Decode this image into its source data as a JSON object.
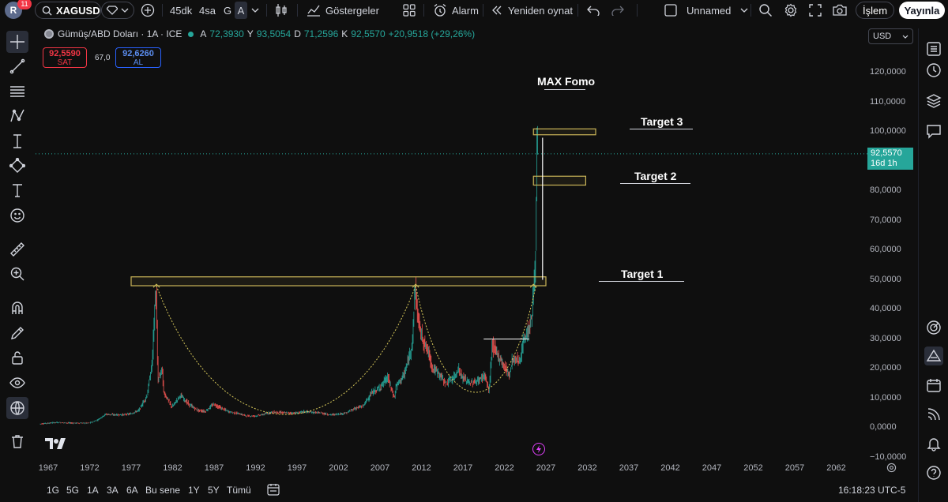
{
  "toolbar": {
    "avatar_letter": "R",
    "notification_count": "11",
    "symbol": "XAGUSD",
    "intervals": [
      "45dk",
      "4sa",
      "G",
      "A"
    ],
    "indicators_label": "Göstergeler",
    "alarm_label": "Alarm",
    "replay_label": "Yeniden oynat",
    "layout_name": "Unnamed",
    "trade_label": "İşlem",
    "publish_label": "Yayınla"
  },
  "legend": {
    "title": "Gümüş/ABD Doları · 1A · ICE",
    "open_label": "A",
    "open_value": "72,3930",
    "high_label": "Y",
    "high_value": "93,5054",
    "low_label": "D",
    "low_value": "71,2596",
    "close_label": "K",
    "close_value": "92,5570",
    "change": "+20,9518 (+29,26%)"
  },
  "trade": {
    "sell_price": "92,5590",
    "sell_label": "SAT",
    "spread": "67,0",
    "buy_price": "92,6260",
    "buy_label": "AL"
  },
  "currency": "USD",
  "annotations": {
    "max_fomo": "MAX Fomo",
    "target1": "Target 1",
    "target2": "Target 2",
    "target3": "Target 3"
  },
  "last_price": {
    "value": "92,5570",
    "countdown": "16d 1h"
  },
  "price_axis": [
    "120,0000",
    "110,0000",
    "100,0000",
    "90,0000",
    "80,0000",
    "70,0000",
    "60,0000",
    "50,0000",
    "40,0000",
    "30,0000",
    "20,0000",
    "10,0000",
    "0,0000",
    "−10,0000"
  ],
  "time_axis": [
    "1967",
    "1972",
    "1977",
    "1982",
    "1987",
    "1992",
    "1997",
    "2002",
    "2007",
    "2012",
    "2017",
    "2022",
    "2027",
    "2032",
    "2037",
    "2042",
    "2047",
    "2052",
    "2057",
    "2062"
  ],
  "bottom": {
    "ranges": [
      "1G",
      "5G",
      "1A",
      "3A",
      "6A",
      "Bu sene",
      "1Y",
      "5Y",
      "Tümü"
    ],
    "clock": "16:18:23 UTC-5"
  },
  "colors": {
    "up": "#26a69a",
    "down": "#ef5350",
    "accent": "#2962ff",
    "annotation_box": "#c9b458"
  },
  "chart_data": {
    "type": "candlestick",
    "symbol": "XAGUSD",
    "interval": "1M",
    "ylim": [
      -10,
      130
    ],
    "xlim": [
      1966,
      2066
    ],
    "series": [
      {
        "name": "XAGUSD",
        "points": [
          [
            1966,
            1.3
          ],
          [
            1968,
            1.8
          ],
          [
            1970,
            1.6
          ],
          [
            1972,
            1.6
          ],
          [
            1973,
            2.6
          ],
          [
            1974,
            4.6
          ],
          [
            1975,
            4.4
          ],
          [
            1976,
            4.4
          ],
          [
            1977,
            4.7
          ],
          [
            1978,
            5.9
          ],
          [
            1979,
            11
          ],
          [
            1979.6,
            22
          ],
          [
            1980.05,
            48
          ],
          [
            1980.3,
            16
          ],
          [
            1980.8,
            20
          ],
          [
            1981,
            12
          ],
          [
            1982,
            7
          ],
          [
            1983,
            11
          ],
          [
            1984,
            8
          ],
          [
            1985,
            6
          ],
          [
            1986,
            5.5
          ],
          [
            1987,
            8
          ],
          [
            1988,
            6.5
          ],
          [
            1989,
            5.3
          ],
          [
            1990,
            4.8
          ],
          [
            1991,
            4
          ],
          [
            1992,
            4
          ],
          [
            1993,
            4.5
          ],
          [
            1994,
            5.3
          ],
          [
            1995,
            5.2
          ],
          [
            1996,
            5
          ],
          [
            1997,
            5
          ],
          [
            1998,
            5.5
          ],
          [
            1999,
            5.2
          ],
          [
            2000,
            5
          ],
          [
            2001,
            4.4
          ],
          [
            2002,
            4.6
          ],
          [
            2003,
            5
          ],
          [
            2004,
            6.5
          ],
          [
            2005,
            7.3
          ],
          [
            2006,
            11.5
          ],
          [
            2007,
            13.5
          ],
          [
            2008,
            17
          ],
          [
            2008.8,
            10
          ],
          [
            2009,
            14
          ],
          [
            2010,
            18
          ],
          [
            2010.6,
            24
          ],
          [
            2011,
            30
          ],
          [
            2011.3,
            48
          ],
          [
            2011.6,
            38
          ],
          [
            2012,
            32
          ],
          [
            2012.5,
            28
          ],
          [
            2013,
            25
          ],
          [
            2013.4,
            20
          ],
          [
            2014,
            19
          ],
          [
            2015,
            15
          ],
          [
            2016,
            17
          ],
          [
            2016.5,
            20
          ],
          [
            2017,
            17
          ],
          [
            2018,
            15
          ],
          [
            2019,
            16
          ],
          [
            2019.7,
            18
          ],
          [
            2020.2,
            12
          ],
          [
            2020.6,
            28
          ],
          [
            2021,
            26
          ],
          [
            2022,
            21
          ],
          [
            2022.7,
            18
          ],
          [
            2023,
            23
          ],
          [
            2024,
            23
          ],
          [
            2024.4,
            30
          ],
          [
            2025,
            33
          ],
          [
            2025.4,
            38
          ],
          [
            2025.6,
            48
          ],
          [
            2025.8,
            55
          ],
          [
            2025.9,
            75
          ],
          [
            2026,
            92.56
          ]
        ]
      }
    ],
    "drawings": {
      "resistance_box": {
        "x": [
          1977,
          2027
        ],
        "y": [
          48,
          51
        ]
      },
      "target2_box": {
        "x": [
          2025.5,
          2031.8
        ],
        "y": [
          82,
          85
        ]
      },
      "target3_box": {
        "x": [
          2025.5,
          2033
        ],
        "y": [
          99,
          101
        ]
      },
      "projection_line": {
        "x": 2026.6,
        "y": [
          50,
          98
        ]
      },
      "minor_resistance": {
        "x": [
          2019.5,
          2025
        ],
        "y": [
          30,
          30
        ]
      }
    }
  }
}
